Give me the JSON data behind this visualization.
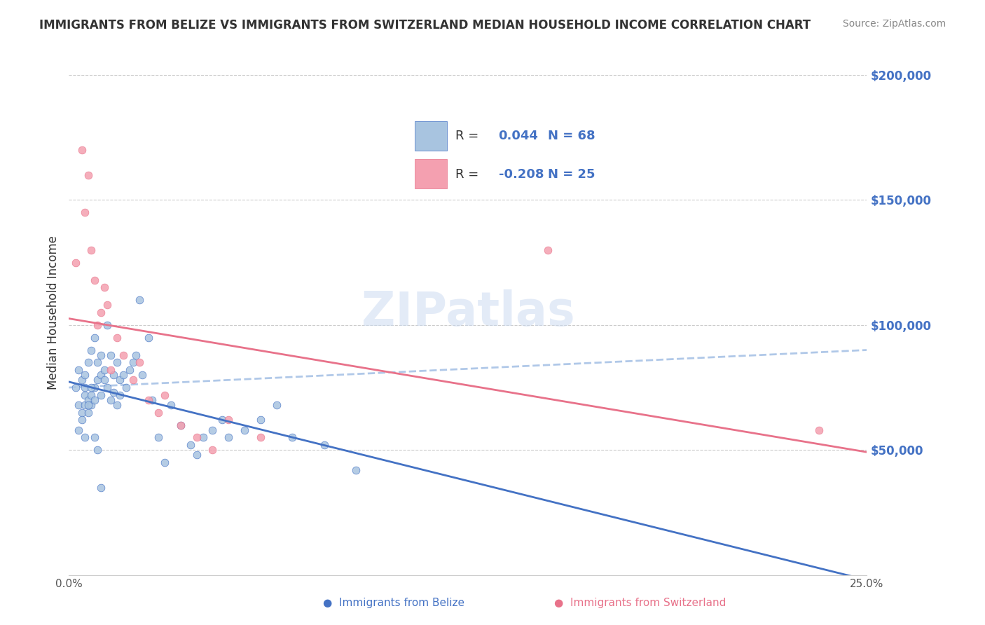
{
  "title": "IMMIGRANTS FROM BELIZE VS IMMIGRANTS FROM SWITZERLAND MEDIAN HOUSEHOLD INCOME CORRELATION CHART",
  "source": "Source: ZipAtlas.com",
  "xlabel": "",
  "ylabel": "Median Household Income",
  "xlim": [
    0.0,
    0.25
  ],
  "ylim": [
    0,
    210000
  ],
  "yticks": [
    0,
    50000,
    100000,
    150000,
    200000
  ],
  "ytick_labels": [
    "",
    "$50,000",
    "$100,000",
    "$150,000",
    "$200,000"
  ],
  "xticks": [
    0.0,
    0.05,
    0.1,
    0.15,
    0.2,
    0.25
  ],
  "xtick_labels": [
    "0.0%",
    "",
    "",
    "",
    "",
    "25.0%"
  ],
  "belize_color": "#a8c4e0",
  "switzerland_color": "#f4a0b0",
  "belize_line_color": "#4472c4",
  "switzerland_line_color": "#e8728a",
  "dashed_line_color": "#b0c8e8",
  "legend_R_belize": "0.044",
  "legend_N_belize": "68",
  "legend_R_switzerland": "-0.208",
  "legend_N_switzerland": "25",
  "watermark": "ZIPatlas",
  "watermark_color": "#c8d8f0",
  "belize_x": [
    0.002,
    0.003,
    0.003,
    0.004,
    0.004,
    0.005,
    0.005,
    0.005,
    0.005,
    0.006,
    0.006,
    0.006,
    0.007,
    0.007,
    0.007,
    0.008,
    0.008,
    0.008,
    0.009,
    0.009,
    0.01,
    0.01,
    0.01,
    0.011,
    0.011,
    0.012,
    0.012,
    0.013,
    0.013,
    0.014,
    0.014,
    0.015,
    0.015,
    0.016,
    0.016,
    0.017,
    0.018,
    0.019,
    0.02,
    0.021,
    0.022,
    0.023,
    0.025,
    0.026,
    0.028,
    0.03,
    0.032,
    0.035,
    0.038,
    0.04,
    0.042,
    0.045,
    0.048,
    0.05,
    0.055,
    0.06,
    0.065,
    0.07,
    0.08,
    0.09,
    0.003,
    0.004,
    0.005,
    0.006,
    0.007,
    0.008,
    0.009,
    0.01
  ],
  "belize_y": [
    75000,
    82000,
    68000,
    78000,
    65000,
    72000,
    68000,
    75000,
    80000,
    70000,
    85000,
    65000,
    90000,
    72000,
    68000,
    95000,
    75000,
    70000,
    85000,
    78000,
    80000,
    88000,
    72000,
    82000,
    78000,
    100000,
    75000,
    88000,
    70000,
    80000,
    73000,
    85000,
    68000,
    78000,
    72000,
    80000,
    75000,
    82000,
    85000,
    88000,
    110000,
    80000,
    95000,
    70000,
    55000,
    45000,
    68000,
    60000,
    52000,
    48000,
    55000,
    58000,
    62000,
    55000,
    58000,
    62000,
    68000,
    55000,
    52000,
    42000,
    58000,
    62000,
    55000,
    68000,
    75000,
    55000,
    50000,
    35000
  ],
  "switzerland_x": [
    0.002,
    0.004,
    0.005,
    0.006,
    0.007,
    0.008,
    0.009,
    0.01,
    0.011,
    0.012,
    0.013,
    0.015,
    0.017,
    0.02,
    0.022,
    0.025,
    0.028,
    0.03,
    0.035,
    0.04,
    0.045,
    0.05,
    0.06,
    0.15,
    0.235
  ],
  "switzerland_y": [
    125000,
    170000,
    145000,
    160000,
    130000,
    118000,
    100000,
    105000,
    115000,
    108000,
    82000,
    95000,
    88000,
    78000,
    85000,
    70000,
    65000,
    72000,
    60000,
    55000,
    50000,
    62000,
    55000,
    130000,
    58000
  ]
}
